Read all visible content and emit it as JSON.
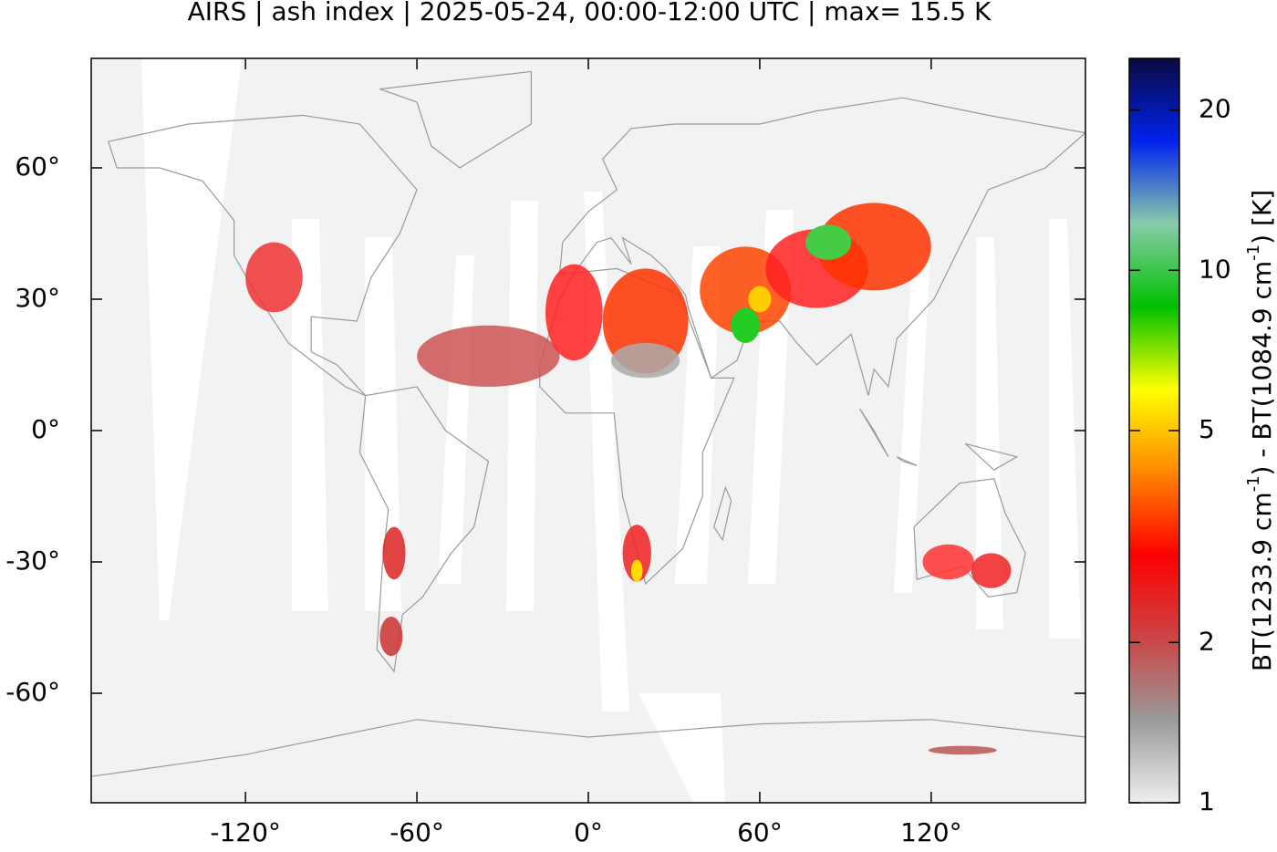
{
  "chart_data": {
    "type": "map",
    "title": "AIRS | ash index | 2025-05-24, 00:00-12:00 UTC | max= 15.5 K",
    "xlim": [
      -174,
      174
    ],
    "ylim": [
      -85,
      85
    ],
    "xticks": [
      {
        "value": -120,
        "label": "-120°"
      },
      {
        "value": -60,
        "label": "-60°"
      },
      {
        "value": 0,
        "label": "0°"
      },
      {
        "value": 60,
        "label": "60°"
      },
      {
        "value": 120,
        "label": "120°"
      }
    ],
    "yticks": [
      {
        "value": 60,
        "label": "60°"
      },
      {
        "value": 30,
        "label": "30°"
      },
      {
        "value": 0,
        "label": "0°"
      },
      {
        "value": -30,
        "label": "-30°"
      },
      {
        "value": -60,
        "label": "-60°"
      }
    ],
    "colorbar": {
      "label_parts": [
        "BT(1233.9 cm",
        "-1",
        ") - BT(1084.9 cm",
        "-1",
        ") [K]"
      ],
      "lim": [
        1,
        25
      ],
      "log": true,
      "ticks": [
        1,
        2,
        5,
        10,
        20
      ],
      "colors": [
        "#eeeeee",
        "#9a9a9a",
        "#cc4444",
        "#ff0000",
        "#ff8800",
        "#ffff00",
        "#00c000",
        "#88ccaa",
        "#0022ee",
        "#0a0a40"
      ]
    }
  }
}
